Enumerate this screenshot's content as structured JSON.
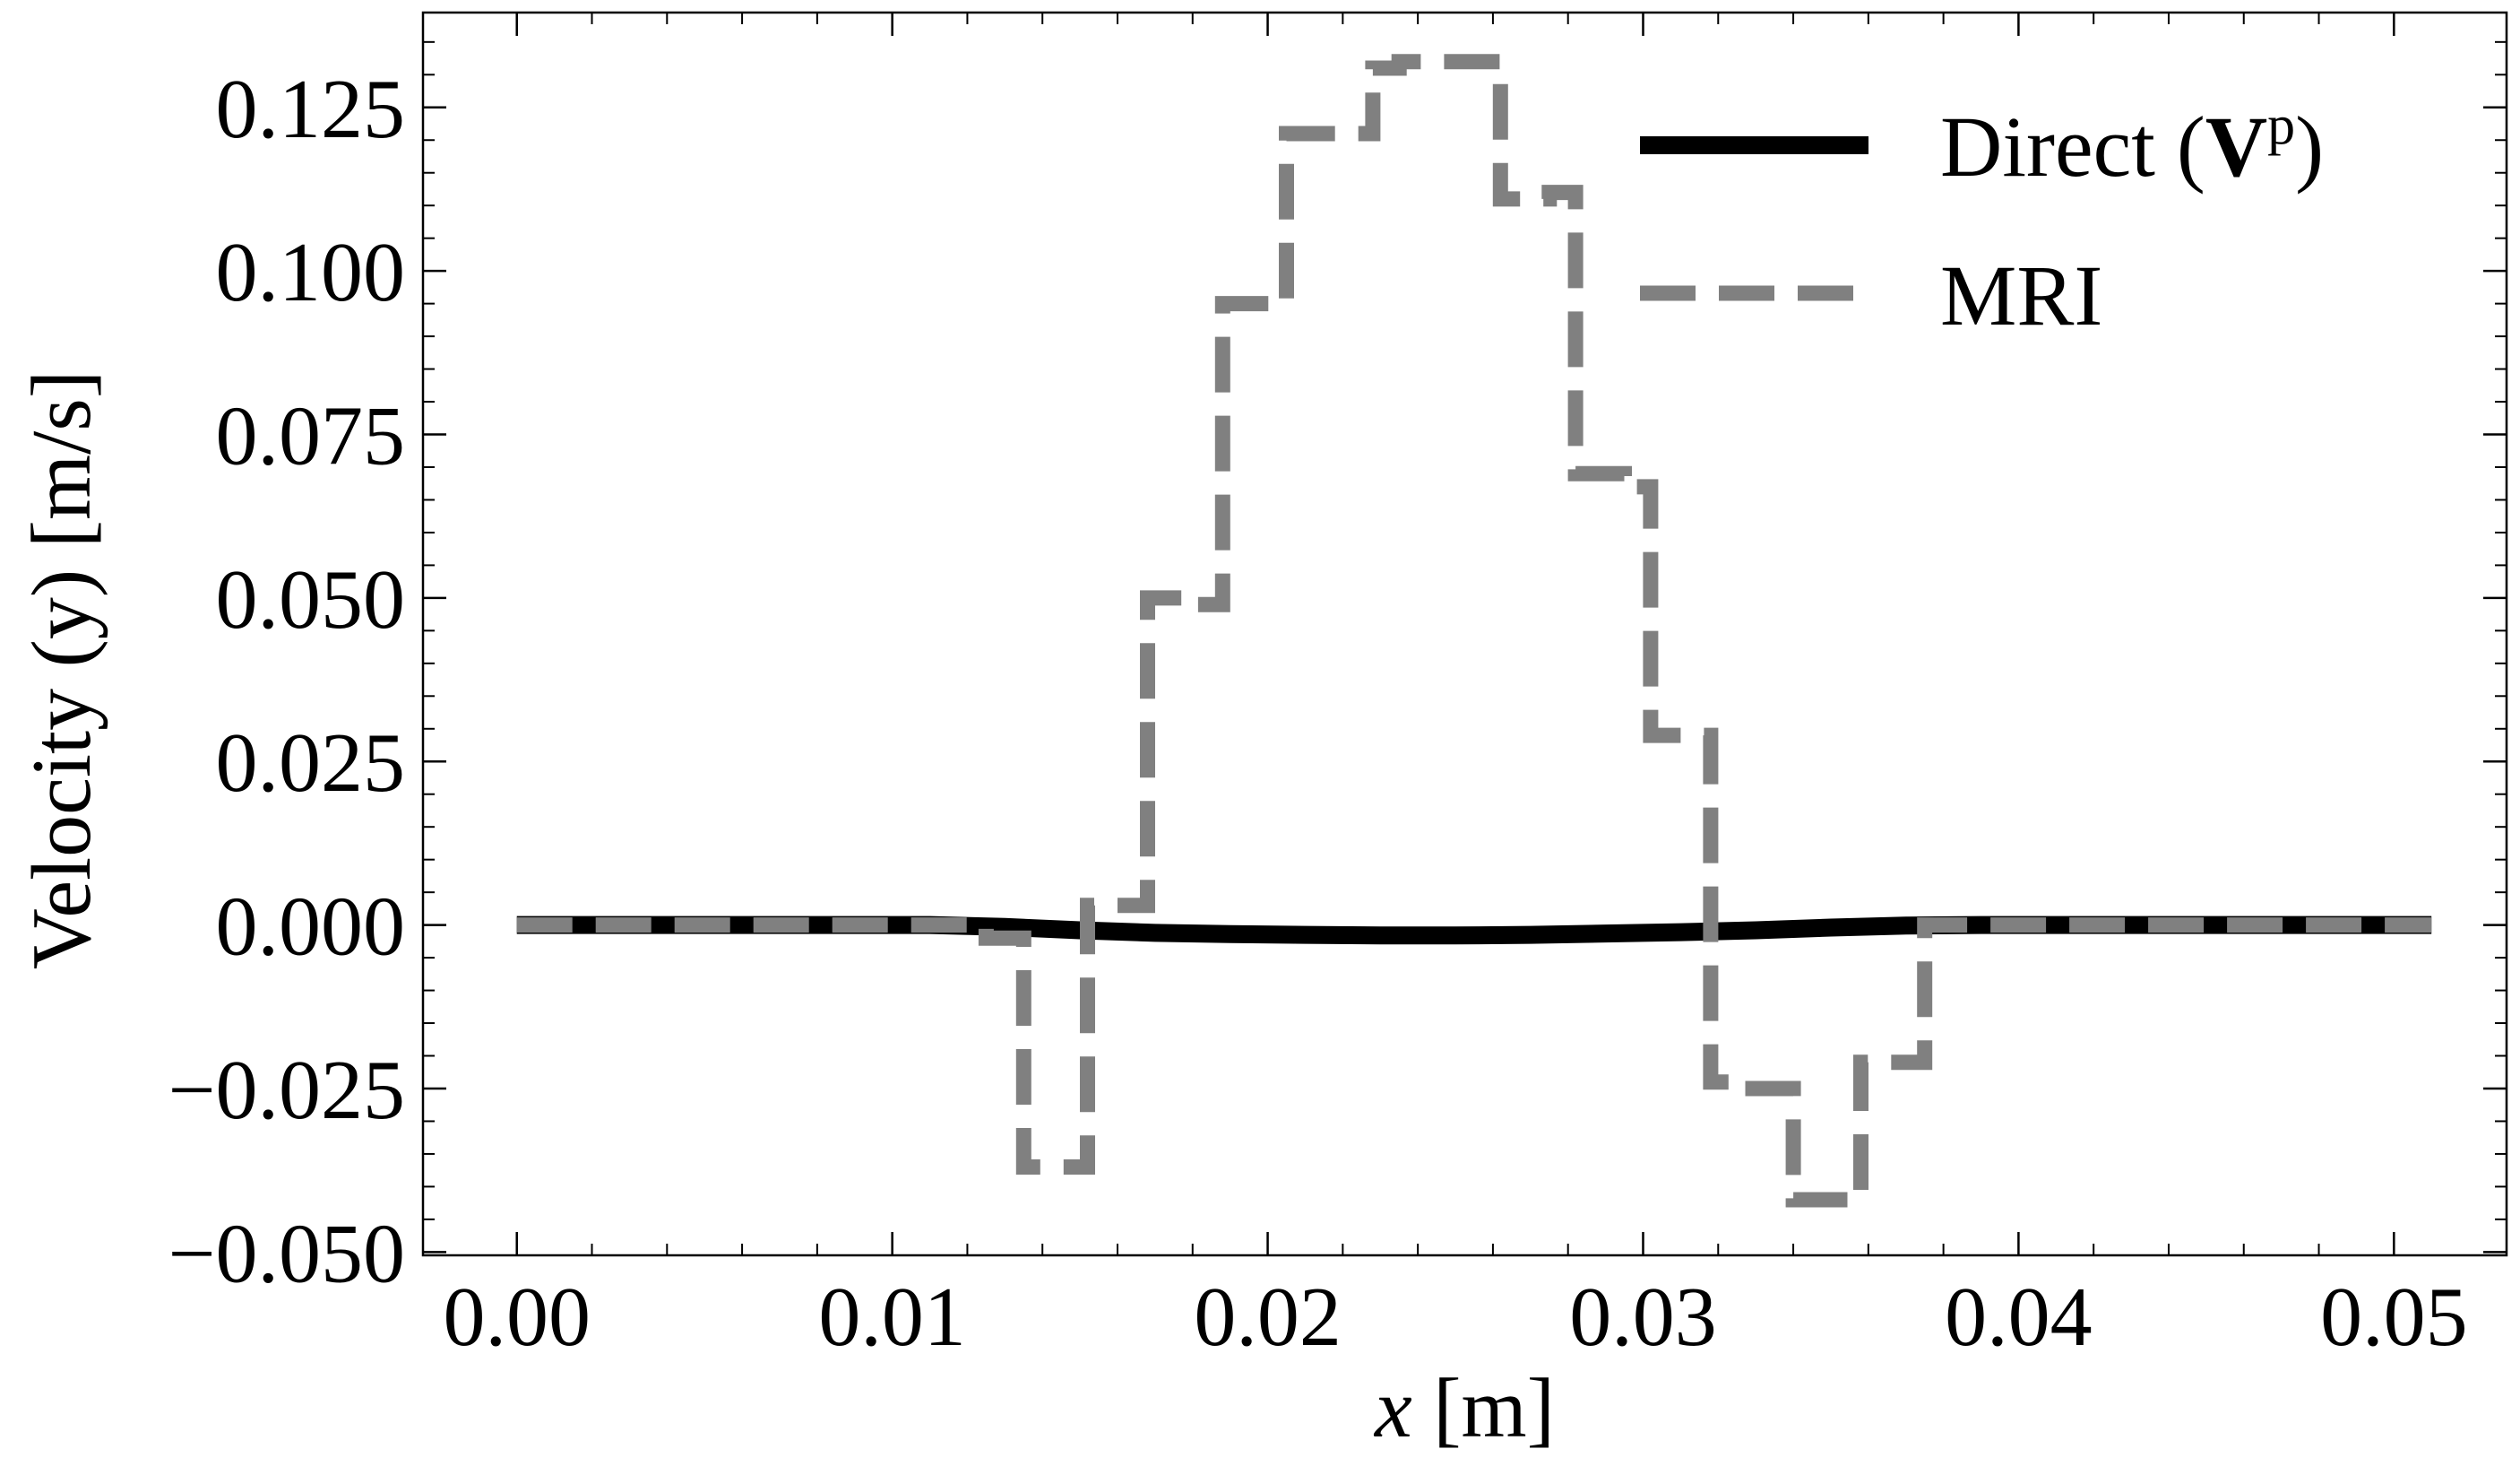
{
  "chart_data": {
    "type": "line",
    "title": "",
    "xlabel": {
      "var": "x",
      "unit": " [m]"
    },
    "ylabel": "Velocity (y) [m/s]",
    "xlim": [
      -0.0025,
      0.053
    ],
    "ylim": [
      -0.0505,
      0.1395
    ],
    "xticks": [
      0.0,
      0.01,
      0.02,
      0.03,
      0.04,
      0.05
    ],
    "xtick_labels": [
      "0.00",
      "0.01",
      "0.02",
      "0.03",
      "0.04",
      "0.05"
    ],
    "yticks": [
      -0.05,
      -0.025,
      0.0,
      0.025,
      0.05,
      0.075,
      0.1,
      0.125
    ],
    "ytick_labels": [
      "−0.050",
      "−0.025",
      "0.000",
      "0.025",
      "0.050",
      "0.075",
      "0.100",
      "0.125"
    ],
    "grid": false,
    "legend": {
      "placement": "top-right"
    },
    "series": [
      {
        "name_main": "Direct (",
        "name_bold": "V",
        "name_sup": "p",
        "name_close": ")",
        "color": "#000000",
        "style": "solid",
        "x": [
          0.0,
          0.011,
          0.013,
          0.015,
          0.017,
          0.019,
          0.021,
          0.023,
          0.025,
          0.027,
          0.029,
          0.031,
          0.033,
          0.035,
          0.037,
          0.039,
          0.051
        ],
        "y": [
          0.0,
          0.0,
          -0.0003,
          -0.0008,
          -0.0012,
          -0.0014,
          -0.0015,
          -0.0016,
          -0.0016,
          -0.0015,
          -0.0013,
          -0.0011,
          -0.0008,
          -0.0004,
          -0.0001,
          0.0,
          0.0
        ]
      },
      {
        "name": "MRI",
        "color": "#808080",
        "style": "dashed",
        "x": [
          0.0,
          0.0125,
          0.0125,
          0.0135,
          0.0135,
          0.0152,
          0.0152,
          0.0168,
          0.0168,
          0.0178,
          0.0178,
          0.0188,
          0.0188,
          0.0205,
          0.0205,
          0.0212,
          0.0212,
          0.0228,
          0.0228,
          0.0235,
          0.0235,
          0.0262,
          0.0262,
          0.0275,
          0.0275,
          0.0282,
          0.0282,
          0.0295,
          0.0295,
          0.0302,
          0.0302,
          0.0318,
          0.0318,
          0.0325,
          0.0325,
          0.034,
          0.034,
          0.0358,
          0.0358,
          0.0375,
          0.0375,
          0.051
        ],
        "y": [
          0.0,
          0.0,
          -0.002,
          -0.002,
          -0.037,
          -0.037,
          0.003,
          0.003,
          0.05,
          0.05,
          0.049,
          0.049,
          0.095,
          0.095,
          0.121,
          0.121,
          0.121,
          0.121,
          0.131,
          0.131,
          0.132,
          0.132,
          0.111,
          0.111,
          0.112,
          0.112,
          0.069,
          0.069,
          0.067,
          0.067,
          0.029,
          0.029,
          -0.024,
          -0.024,
          -0.025,
          -0.025,
          -0.042,
          -0.042,
          -0.021,
          -0.021,
          0.0,
          0.0
        ]
      }
    ]
  }
}
